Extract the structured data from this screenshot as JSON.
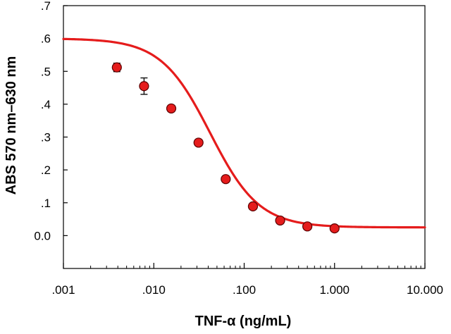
{
  "chart_data": {
    "type": "scatter",
    "title": "",
    "xlabel": "TNF-α (ng/mL)",
    "ylabel": "ABS 570 nm–630 nm",
    "x_scale": "log",
    "xlim": [
      0.001,
      10
    ],
    "ylim": [
      -0.1,
      0.7
    ],
    "grid": false,
    "x_ticks": [
      {
        "value": 0.001,
        "label": ".001"
      },
      {
        "value": 0.01,
        "label": ".010"
      },
      {
        "value": 0.1,
        "label": ".100"
      },
      {
        "value": 1,
        "label": "1.000"
      },
      {
        "value": 10,
        "label": "10.000"
      }
    ],
    "y_ticks": [
      {
        "value": 0.0,
        "label": "0.0"
      },
      {
        "value": 0.1,
        "label": ".1"
      },
      {
        "value": 0.2,
        "label": ".2"
      },
      {
        "value": 0.3,
        "label": ".3"
      },
      {
        "value": 0.4,
        "label": ".4"
      },
      {
        "value": 0.5,
        "label": ".5"
      },
      {
        "value": 0.6,
        "label": ".6"
      },
      {
        "value": 0.7,
        "label": ".7"
      }
    ],
    "points": [
      {
        "x": 0.0039,
        "y": 0.512,
        "err": 0.013
      },
      {
        "x": 0.0078,
        "y": 0.455,
        "err": 0.025
      },
      {
        "x": 0.0156,
        "y": 0.387,
        "err": 0.0
      },
      {
        "x": 0.03125,
        "y": 0.283,
        "err": 0.0
      },
      {
        "x": 0.0625,
        "y": 0.172,
        "err": 0.0
      },
      {
        "x": 0.125,
        "y": 0.089,
        "err": 0.0
      },
      {
        "x": 0.25,
        "y": 0.046,
        "err": 0.0
      },
      {
        "x": 0.5,
        "y": 0.028,
        "err": 0.0
      },
      {
        "x": 1.0,
        "y": 0.022,
        "err": 0.0
      }
    ],
    "fit_curve": {
      "model": "4PL",
      "top": 0.6,
      "bottom": 0.025,
      "ec50": 0.042,
      "hill": 1.6
    },
    "colors": {
      "marker": "#e51c1c",
      "marker_edge": "#5a0000",
      "curve": "#e51c1c",
      "axis": "#000000"
    }
  }
}
